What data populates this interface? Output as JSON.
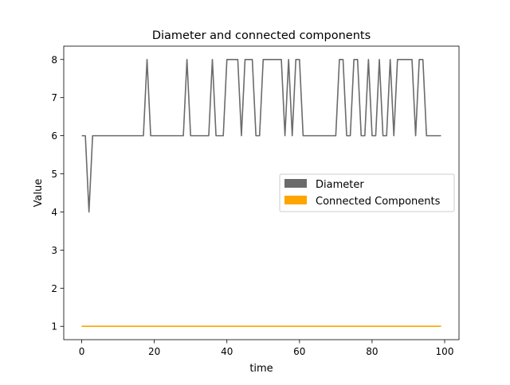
{
  "chart_data": {
    "type": "line",
    "title": "Diameter and connected components",
    "xlabel": "time",
    "ylabel": "Value",
    "xlim": [
      -4.95,
      103.95
    ],
    "ylim": [
      0.65,
      8.35
    ],
    "xticks": [
      0,
      20,
      40,
      60,
      80,
      100
    ],
    "yticks": [
      1,
      2,
      3,
      4,
      5,
      6,
      7,
      8
    ],
    "grid": false,
    "legend_position": "center-right",
    "x": [
      0,
      1,
      2,
      3,
      4,
      5,
      6,
      7,
      8,
      9,
      10,
      11,
      12,
      13,
      14,
      15,
      16,
      17,
      18,
      19,
      20,
      21,
      22,
      23,
      24,
      25,
      26,
      27,
      28,
      29,
      30,
      31,
      32,
      33,
      34,
      35,
      36,
      37,
      38,
      39,
      40,
      41,
      42,
      43,
      44,
      45,
      46,
      47,
      48,
      49,
      50,
      51,
      52,
      53,
      54,
      55,
      56,
      57,
      58,
      59,
      60,
      61,
      62,
      63,
      64,
      65,
      66,
      67,
      68,
      69,
      70,
      71,
      72,
      73,
      74,
      75,
      76,
      77,
      78,
      79,
      80,
      81,
      82,
      83,
      84,
      85,
      86,
      87,
      88,
      89,
      90,
      91,
      92,
      93,
      94,
      95,
      96,
      97,
      98,
      99
    ],
    "series": [
      {
        "name": "Diameter",
        "color": "#6b6b6b",
        "values": [
          6,
          6,
          4,
          6,
          6,
          6,
          6,
          6,
          6,
          6,
          6,
          6,
          6,
          6,
          6,
          6,
          6,
          6,
          8,
          6,
          6,
          6,
          6,
          6,
          6,
          6,
          6,
          6,
          6,
          8,
          6,
          6,
          6,
          6,
          6,
          6,
          8,
          6,
          6,
          6,
          8,
          8,
          8,
          8,
          6,
          8,
          8,
          8,
          6,
          6,
          8,
          8,
          8,
          8,
          8,
          8,
          6,
          8,
          6,
          8,
          8,
          6,
          6,
          6,
          6,
          6,
          6,
          6,
          6,
          6,
          6,
          8,
          8,
          6,
          6,
          8,
          8,
          6,
          6,
          8,
          6,
          6,
          8,
          6,
          6,
          8,
          6,
          8,
          8,
          8,
          8,
          8,
          6,
          8,
          8,
          6,
          6,
          6,
          6,
          6
        ]
      },
      {
        "name": "Connected Components",
        "color": "#ffa500",
        "values": [
          1,
          1,
          1,
          1,
          1,
          1,
          1,
          1,
          1,
          1,
          1,
          1,
          1,
          1,
          1,
          1,
          1,
          1,
          1,
          1,
          1,
          1,
          1,
          1,
          1,
          1,
          1,
          1,
          1,
          1,
          1,
          1,
          1,
          1,
          1,
          1,
          1,
          1,
          1,
          1,
          1,
          1,
          1,
          1,
          1,
          1,
          1,
          1,
          1,
          1,
          1,
          1,
          1,
          1,
          1,
          1,
          1,
          1,
          1,
          1,
          1,
          1,
          1,
          1,
          1,
          1,
          1,
          1,
          1,
          1,
          1,
          1,
          1,
          1,
          1,
          1,
          1,
          1,
          1,
          1,
          1,
          1,
          1,
          1,
          1,
          1,
          1,
          1,
          1,
          1,
          1,
          1,
          1,
          1,
          1,
          1,
          1,
          1,
          1,
          1
        ]
      }
    ]
  }
}
